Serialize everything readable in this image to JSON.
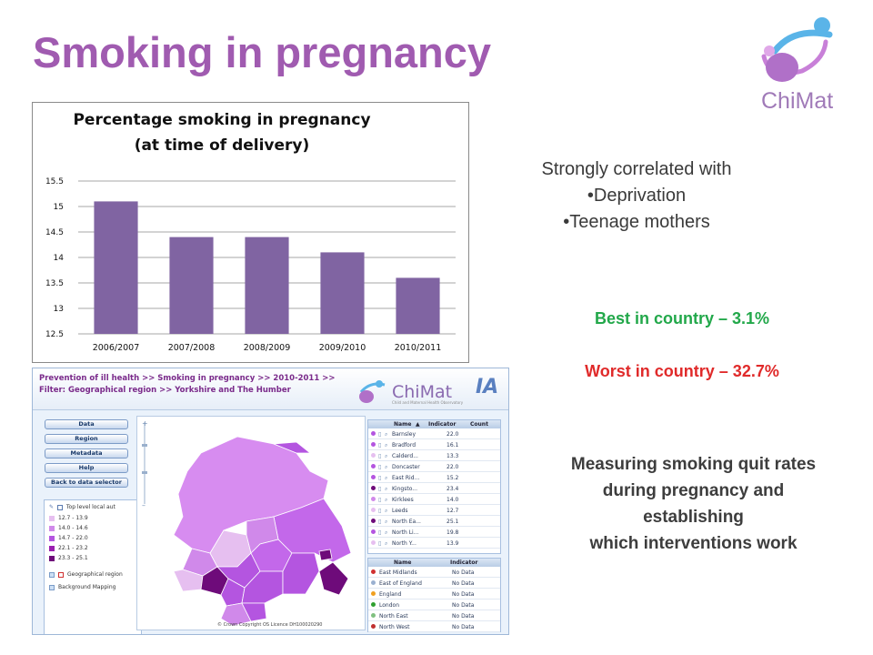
{
  "slide": {
    "title": "Smoking in pregnancy"
  },
  "logo": {
    "text": "ChiMat"
  },
  "chart_data": {
    "type": "bar",
    "title": "Percentage smoking in pregnancy",
    "subtitle": "(at time of delivery)",
    "categories": [
      "2006/2007",
      "2007/2008",
      "2008/2009",
      "2009/2010",
      "2010/2011"
    ],
    "values": [
      15.1,
      14.4,
      14.4,
      14.1,
      13.6
    ],
    "ylim": [
      12.5,
      15.5
    ],
    "yticks": [
      "12.5",
      "13",
      "13.5",
      "14",
      "14.5",
      "15",
      "15.5"
    ],
    "xlabel": "",
    "ylabel": "",
    "grid": true,
    "bar_color": "#8064a2"
  },
  "notes": {
    "correlated_heading": "Strongly correlated with",
    "correlated_items": [
      "•Deprivation",
      "•Teenage mothers"
    ],
    "best": "Best in country – 3.1%",
    "worst": "Worst in country – 32.7%",
    "measuring_lines": [
      "Measuring smoking quit rates",
      "during pregnancy and",
      "establishing",
      "which interventions work"
    ]
  },
  "colors": {
    "title": "#a05bb0",
    "best": "#22a84a",
    "worst": "#e02a2a"
  },
  "atlas": {
    "breadcrumb": "Prevention of ill health >> Smoking in pregnancy >>  2010-2011 >>",
    "filter": "Filter:  Geographical region >>  Yorkshire and The Humber",
    "logo_text": "ChiMat",
    "logo_sub": "Child and Maternal Health Observatory",
    "ia_text": "IA",
    "buttons": [
      "Data",
      "Region",
      "Metadata",
      "Help",
      "Back to data selector"
    ],
    "legend_title": "Top level local aut",
    "legend": [
      {
        "label": "12.7 - 13.9",
        "color": "#e6bff0"
      },
      {
        "label": "14.0 - 14.6",
        "color": "#d089ea"
      },
      {
        "label": "14.7 - 22.0",
        "color": "#b455e0"
      },
      {
        "label": "22.1 - 23.2",
        "color": "#9a1fb0"
      },
      {
        "label": "23.3 - 25.1",
        "color": "#6e0b7a"
      }
    ],
    "geo_region": "Geographical region",
    "bg_mapping": "Background Mapping",
    "credit": "© Crown Copyright OS Licence DH100020290",
    "table1": {
      "headers": [
        "Name",
        "Indicator",
        "Count"
      ],
      "rows": [
        {
          "name": "Barnsley",
          "value": "22.0",
          "color": "#b455e0"
        },
        {
          "name": "Bradford",
          "value": "16.1",
          "color": "#b455e0"
        },
        {
          "name": "Calderd...",
          "value": "13.3",
          "color": "#e6bff0"
        },
        {
          "name": "Doncaster",
          "value": "22.0",
          "color": "#b455e0"
        },
        {
          "name": "East Rid...",
          "value": "15.2",
          "color": "#b455e0"
        },
        {
          "name": "Kingsto...",
          "value": "23.4",
          "color": "#6e0b7a"
        },
        {
          "name": "Kirklees",
          "value": "14.0",
          "color": "#d089ea"
        },
        {
          "name": "Leeds",
          "value": "12.7",
          "color": "#e6bff0"
        },
        {
          "name": "North Ea...",
          "value": "25.1",
          "color": "#6e0b7a"
        },
        {
          "name": "North Li...",
          "value": "19.8",
          "color": "#b455e0"
        },
        {
          "name": "North Y...",
          "value": "13.9",
          "color": "#e6bff0"
        }
      ]
    },
    "table2": {
      "headers": [
        "Name",
        "Indicator"
      ],
      "rows": [
        {
          "name": "East Midlands",
          "value": "No Data",
          "color": "#d03030"
        },
        {
          "name": "East of England",
          "value": "No Data",
          "color": "#9ab0d0"
        },
        {
          "name": "England",
          "value": "No Data",
          "color": "#f0a020"
        },
        {
          "name": "London",
          "value": "No Data",
          "color": "#30a030"
        },
        {
          "name": "North East",
          "value": "No Data",
          "color": "#80c080"
        },
        {
          "name": "North West",
          "value": "No Data",
          "color": "#c03030"
        }
      ]
    }
  }
}
